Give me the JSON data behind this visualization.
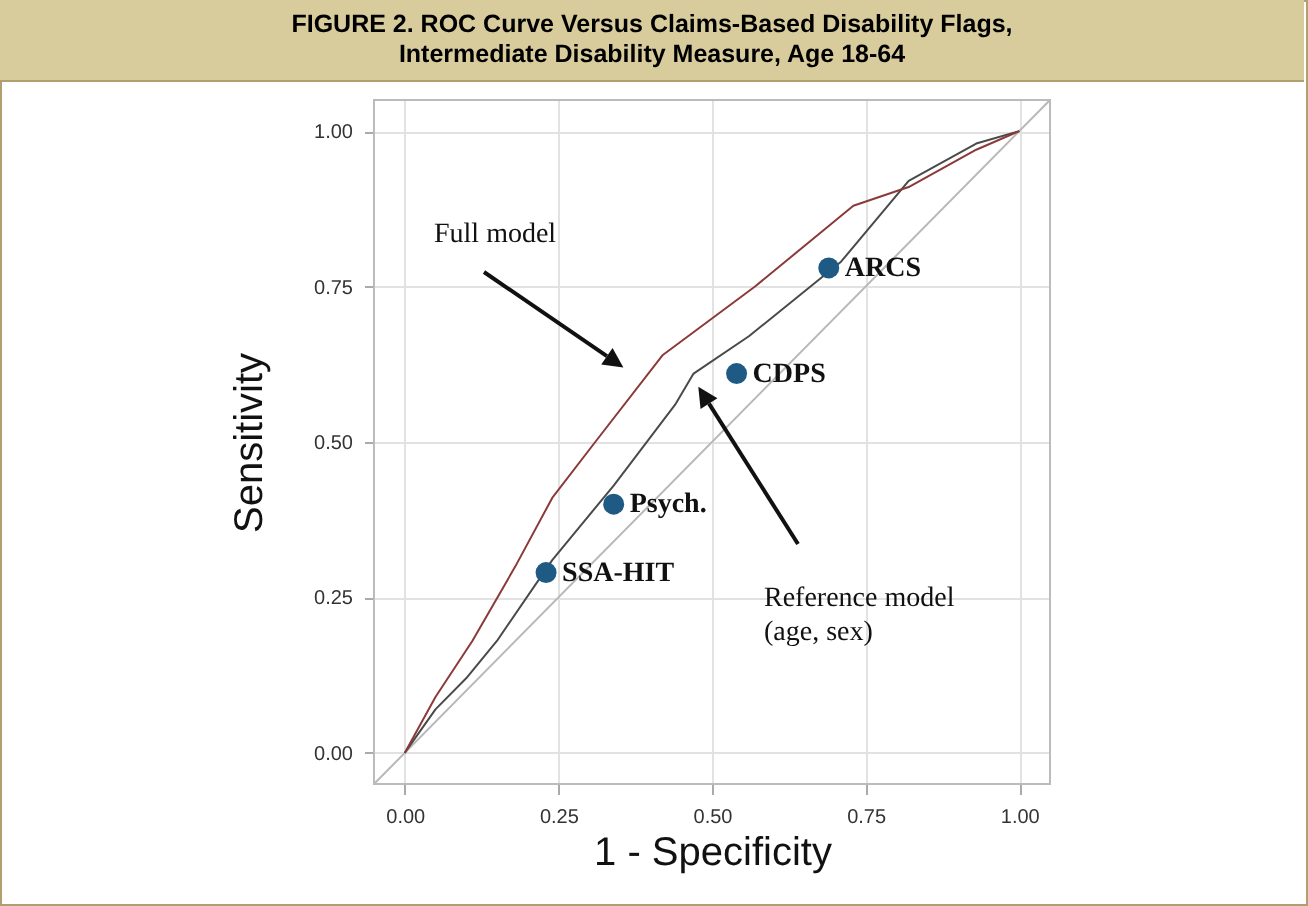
{
  "chart_data": {
    "type": "line",
    "title": "FIGURE 2. ROC Curve Versus Claims-Based Disability Flags, Intermediate Disability Measure, Age 18-64",
    "xlabel": "1 - Specificity",
    "ylabel": "Sensitivity",
    "xlim": [
      -0.05,
      1.05
    ],
    "ylim": [
      -0.05,
      1.05
    ],
    "xticks": [
      {
        "value": 0,
        "label": "0.00"
      },
      {
        "value": 0.25,
        "label": "0.25"
      },
      {
        "value": 0.5,
        "label": "0.50"
      },
      {
        "value": 0.75,
        "label": "0.75"
      },
      {
        "value": 1,
        "label": "1.00"
      }
    ],
    "yticks": [
      {
        "value": 0,
        "label": "0.00"
      },
      {
        "value": 0.25,
        "label": "0.25"
      },
      {
        "value": 0.5,
        "label": "0.50"
      },
      {
        "value": 0.75,
        "label": "0.75"
      },
      {
        "value": 1,
        "label": "1.00"
      }
    ],
    "grid": true,
    "marker": "none",
    "series": [
      {
        "color": "#b8b8b8",
        "x": [
          -0.05,
          1.05
        ],
        "values": [
          -0.05,
          1.05
        ]
      },
      {
        "color": "#4a4a4a",
        "x": [
          0,
          0.05,
          0.1,
          0.15,
          0.24,
          0.34,
          0.44,
          0.47,
          0.56,
          0.71,
          0.82,
          0.93,
          1
        ],
        "values": [
          0,
          0.07,
          0.12,
          0.18,
          0.31,
          0.43,
          0.56,
          0.61,
          0.67,
          0.79,
          0.92,
          0.98,
          1
        ]
      },
      {
        "color": "#8b3a3a",
        "x": [
          0,
          0.05,
          0.11,
          0.18,
          0.24,
          0.31,
          0.42,
          0.57,
          0.73,
          0.82,
          0.93,
          1
        ],
        "values": [
          0,
          0.09,
          0.18,
          0.3,
          0.41,
          0.5,
          0.64,
          0.75,
          0.88,
          0.91,
          0.97,
          1
        ]
      },
      {
        "type": "scatter",
        "name": "ARCS",
        "color": "#1f5a85",
        "marker": "circle",
        "x": [
          0.69
        ],
        "values": [
          0.78
        ]
      },
      {
        "type": "scatter",
        "name": "CDPS",
        "color": "#1f5a85",
        "marker": "circle",
        "x": [
          0.54
        ],
        "values": [
          0.61
        ]
      },
      {
        "type": "scatter",
        "name": "Psych.",
        "color": "#1f5a85",
        "marker": "circle",
        "x": [
          0.34
        ],
        "values": [
          0.4
        ]
      },
      {
        "type": "scatter",
        "name": "SSA-HIT",
        "color": "#1f5a85",
        "marker": "circle",
        "x": [
          0.23
        ],
        "values": [
          0.29
        ]
      }
    ],
    "annotations": [
      "Full model",
      "Reference model\n(age, sex)"
    ]
  }
}
